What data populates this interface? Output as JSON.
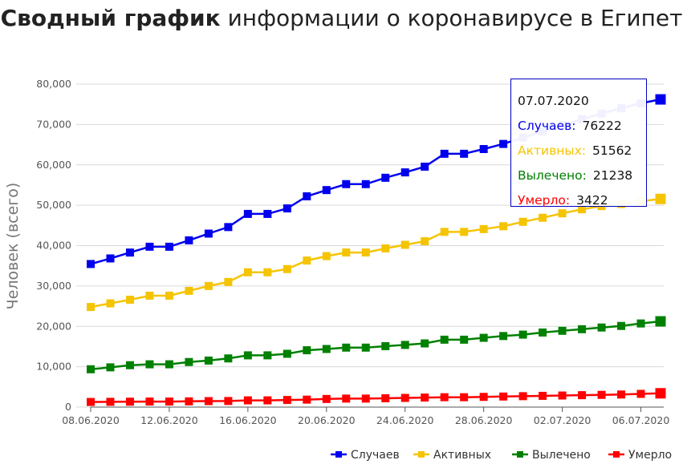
{
  "title": {
    "bold": "Сводный график",
    "rest": " информации о коронавирусе в Египет"
  },
  "chart_data": {
    "type": "line",
    "title": "Сводный график информации о коронавирусе в Египет",
    "ylabel": "Человек (всего)",
    "xlabel": "",
    "ylim": [
      0,
      80000
    ],
    "yticks": [
      "0",
      "10,000",
      "20,000",
      "30,000",
      "40,000",
      "50,000",
      "60,000",
      "70,000",
      "80,000"
    ],
    "xtick_labels": [
      "08.06.2020",
      "12.06.2020",
      "16.06.2020",
      "20.06.2020",
      "24.06.2020",
      "28.06.2020",
      "02.07.2020",
      "06.07.2020"
    ],
    "x": [
      "08.06.2020",
      "09.06.2020",
      "10.06.2020",
      "11.06.2020",
      "12.06.2020",
      "13.06.2020",
      "14.06.2020",
      "15.06.2020",
      "16.06.2020",
      "17.06.2020",
      "18.06.2020",
      "19.06.2020",
      "20.06.2020",
      "21.06.2020",
      "22.06.2020",
      "23.06.2020",
      "24.06.2020",
      "25.06.2020",
      "26.06.2020",
      "27.06.2020",
      "28.06.2020",
      "29.06.2020",
      "30.06.2020",
      "01.07.2020",
      "02.07.2020",
      "03.07.2020",
      "04.07.2020",
      "05.07.2020",
      "06.07.2020",
      "07.07.2020"
    ],
    "grid": true,
    "legend_position": "bottom-right",
    "series": [
      {
        "name": "Случаев",
        "color": "#0000ee",
        "values": [
          35444,
          36829,
          38284,
          39726,
          39726,
          41303,
          42980,
          44598,
          47856,
          47856,
          49219,
          52211,
          53758,
          55233,
          55233,
          56809,
          58141,
          59561,
          62755,
          62755,
          63923,
          65188,
          66754,
          68311,
          69814,
          71299,
          72711,
          74035,
          75253,
          76222
        ]
      },
      {
        "name": "Активных",
        "color": "#f5c400",
        "values": [
          24800,
          25700,
          26600,
          27600,
          27600,
          28800,
          30000,
          31000,
          33400,
          33400,
          34200,
          36300,
          37400,
          38300,
          38300,
          39300,
          40200,
          41100,
          43400,
          43400,
          44100,
          44800,
          45900,
          46900,
          48000,
          49000,
          49800,
          50300,
          51000,
          51562
        ]
      },
      {
        "name": "Вылечено",
        "color": "#008000",
        "values": [
          9375,
          9849,
          10379,
          10605,
          10605,
          11167,
          11529,
          12063,
          12822,
          12822,
          13208,
          14082,
          14393,
          14736,
          14736,
          15096,
          15402,
          15776,
          16700,
          16700,
          17162,
          17606,
          17951,
          18480,
          18901,
          19291,
          19715,
          20103,
          20715,
          21238
        ]
      },
      {
        "name": "Умерло",
        "color": "#ff0000",
        "values": [
          1271,
          1306,
          1342,
          1377,
          1377,
          1422,
          1484,
          1515,
          1672,
          1672,
          1766,
          1850,
          2017,
          2106,
          2106,
          2193,
          2278,
          2365,
          2450,
          2450,
          2533,
          2620,
          2708,
          2789,
          2872,
          2953,
          3034,
          3120,
          3280,
          3422
        ]
      }
    ],
    "tooltip": {
      "date": "07.07.2020",
      "rows": [
        {
          "label": "Случаев:",
          "value": "76222",
          "color": "#0000ee"
        },
        {
          "label": "Активных:",
          "value": "51562",
          "color": "#f5c400"
        },
        {
          "label": "Вылечено:",
          "value": "21238",
          "color": "#008000"
        },
        {
          "label": "Умерло:",
          "value": "3422",
          "color": "#ff0000"
        }
      ]
    }
  }
}
